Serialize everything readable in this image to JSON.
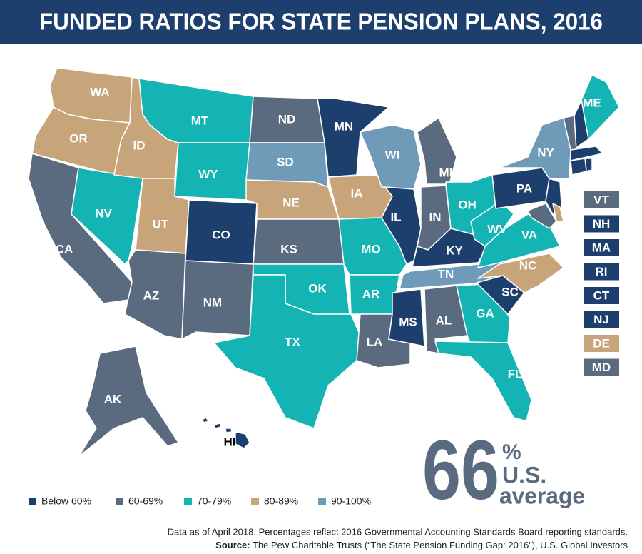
{
  "header": {
    "title": "FUNDED RATIOS FOR STATE PENSION PLANS, 2016"
  },
  "legend": [
    {
      "label": "Below 60%",
      "color": "#1c3f6e"
    },
    {
      "label": "60-69%",
      "color": "#5b6b7f"
    },
    {
      "label": "70-79%",
      "color": "#14b3b4"
    },
    {
      "label": "80-89%",
      "color": "#c8a47a"
    },
    {
      "label": "90-100%",
      "color": "#6f9bb9"
    }
  ],
  "map": {
    "states": [
      {
        "abbr": "WA",
        "group": 3
      },
      {
        "abbr": "OR",
        "group": 3
      },
      {
        "abbr": "CA",
        "group": 1
      },
      {
        "abbr": "NV",
        "group": 2
      },
      {
        "abbr": "ID",
        "group": 3
      },
      {
        "abbr": "MT",
        "group": 2
      },
      {
        "abbr": "WY",
        "group": 2
      },
      {
        "abbr": "UT",
        "group": 3
      },
      {
        "abbr": "AZ",
        "group": 1
      },
      {
        "abbr": "CO",
        "group": 0
      },
      {
        "abbr": "NM",
        "group": 1
      },
      {
        "abbr": "ND",
        "group": 1
      },
      {
        "abbr": "SD",
        "group": 4
      },
      {
        "abbr": "NE",
        "group": 3
      },
      {
        "abbr": "KS",
        "group": 1
      },
      {
        "abbr": "OK",
        "group": 2
      },
      {
        "abbr": "TX",
        "group": 2
      },
      {
        "abbr": "MN",
        "group": 0
      },
      {
        "abbr": "IA",
        "group": 3
      },
      {
        "abbr": "MO",
        "group": 2
      },
      {
        "abbr": "AR",
        "group": 2
      },
      {
        "abbr": "LA",
        "group": 1
      },
      {
        "abbr": "WI",
        "group": 4
      },
      {
        "abbr": "IL",
        "group": 0
      },
      {
        "abbr": "MI",
        "group": 1
      },
      {
        "abbr": "IN",
        "group": 1
      },
      {
        "abbr": "OH",
        "group": 2
      },
      {
        "abbr": "KY",
        "group": 0
      },
      {
        "abbr": "TN",
        "group": 4
      },
      {
        "abbr": "MS",
        "group": 0
      },
      {
        "abbr": "AL",
        "group": 1
      },
      {
        "abbr": "GA",
        "group": 2
      },
      {
        "abbr": "FL",
        "group": 2
      },
      {
        "abbr": "SC",
        "group": 0
      },
      {
        "abbr": "NC",
        "group": 3
      },
      {
        "abbr": "VA",
        "group": 2
      },
      {
        "abbr": "WV",
        "group": 2
      },
      {
        "abbr": "PA",
        "group": 0
      },
      {
        "abbr": "NY",
        "group": 4
      },
      {
        "abbr": "ME",
        "group": 2
      },
      {
        "abbr": "AK",
        "group": 1
      },
      {
        "abbr": "HI",
        "group": 0
      }
    ],
    "small_states": [
      {
        "abbr": "VT",
        "group": 1
      },
      {
        "abbr": "NH",
        "group": 0
      },
      {
        "abbr": "MA",
        "group": 0
      },
      {
        "abbr": "RI",
        "group": 0
      },
      {
        "abbr": "CT",
        "group": 0
      },
      {
        "abbr": "NJ",
        "group": 0
      },
      {
        "abbr": "DE",
        "group": 3
      },
      {
        "abbr": "MD",
        "group": 1
      }
    ]
  },
  "average": {
    "value": 66,
    "unit": "%",
    "line1": "U.S.",
    "line2": "average"
  },
  "footnote": {
    "note": "Data as of April 2018. Percentages reflect 2016 Governmental Accounting Standards Board reporting standards.",
    "source_label": "Source:",
    "source_text": "The Pew Charitable Trusts (“The State Pension Funding Gap: 2016”), U.S. Global Investors"
  }
}
